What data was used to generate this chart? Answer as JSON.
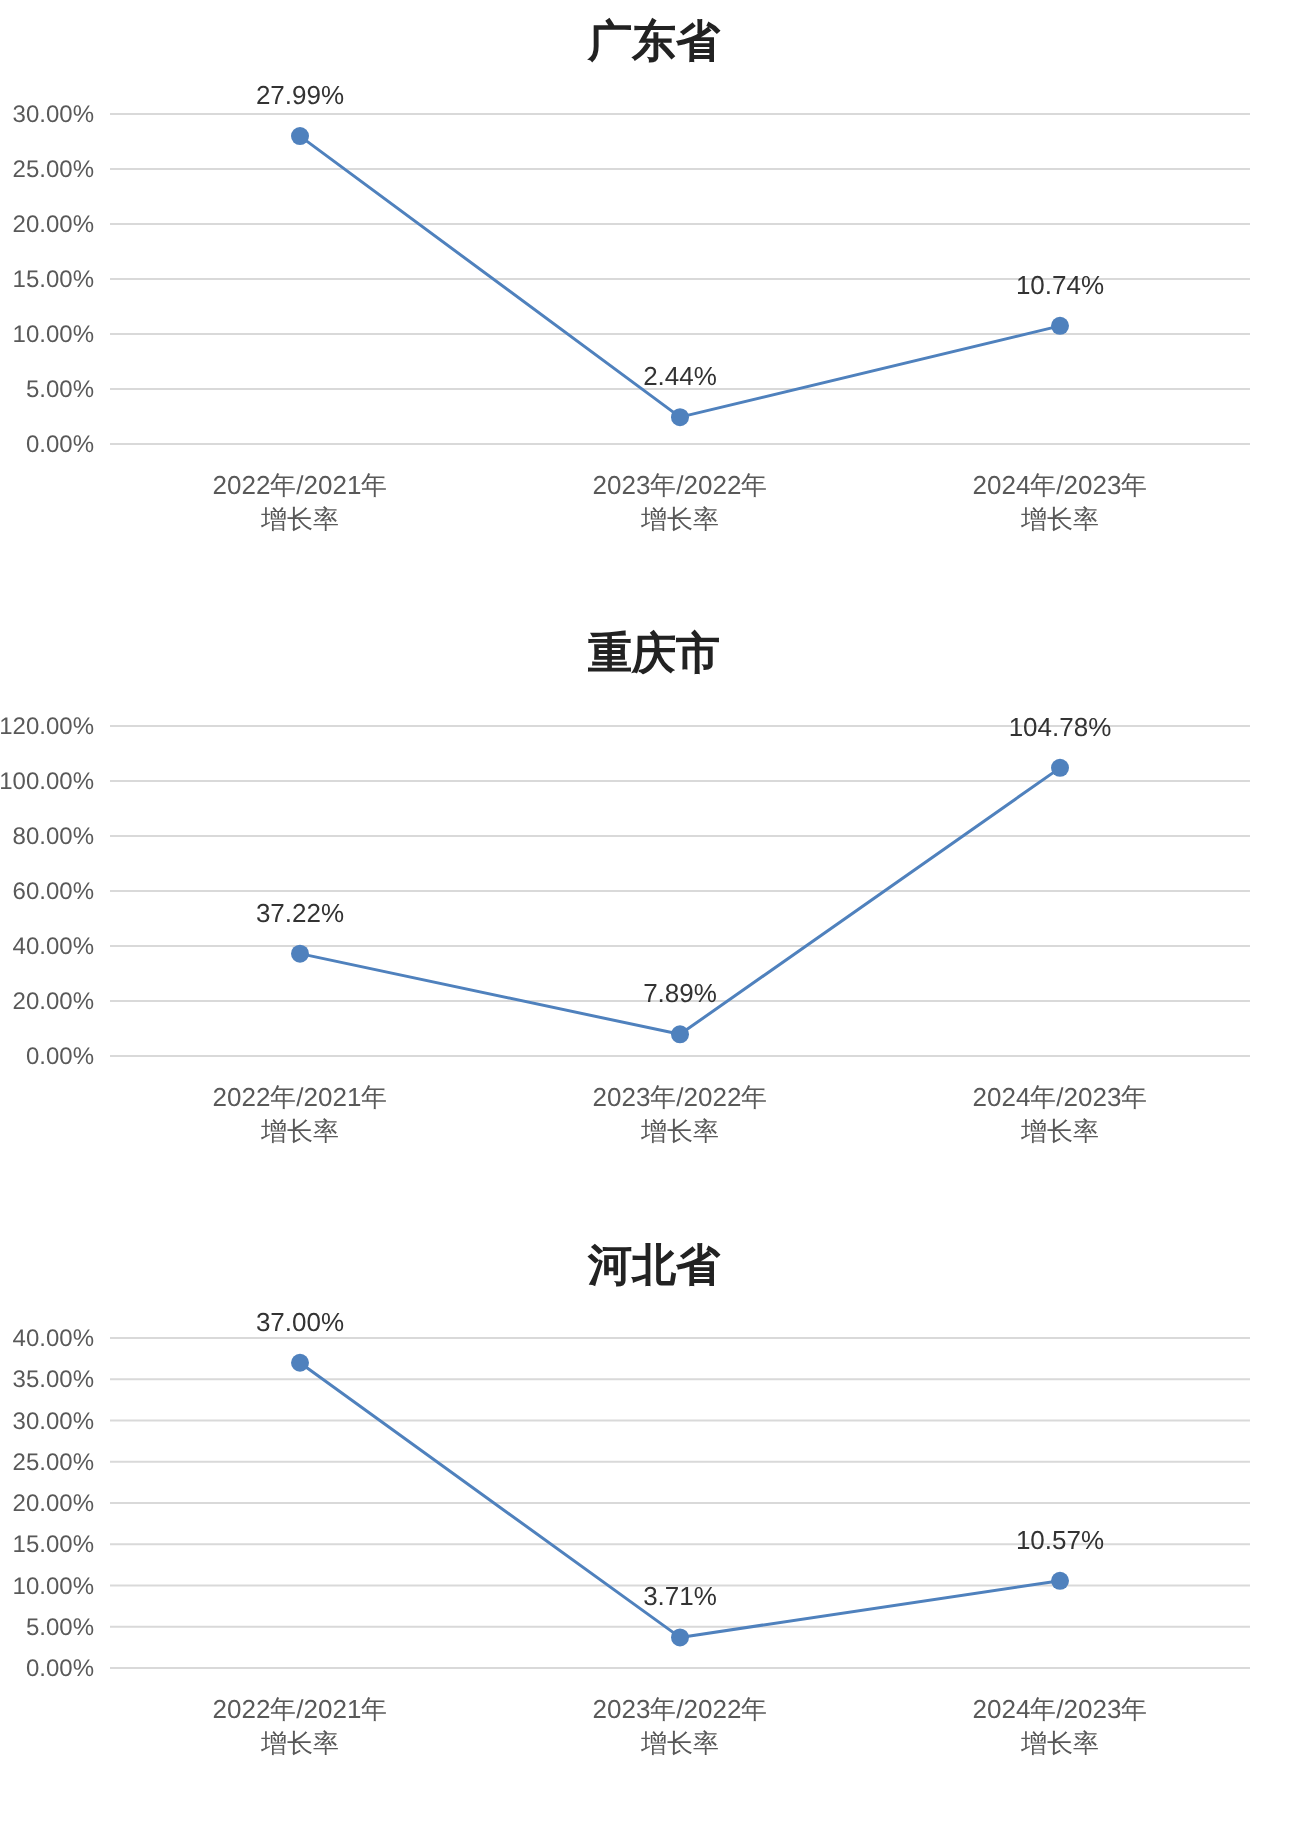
{
  "chart_data": [
    {
      "type": "line",
      "title": "广东省",
      "categories": [
        "2022年/2021年增长率",
        "2023年/2022年增长率",
        "2024年/2023年增长率"
      ],
      "series": [
        {
          "color": "#4f81bd",
          "values": [
            27.99,
            2.44,
            10.74
          ],
          "value_labels": [
            "27.99%",
            "2.44%",
            "10.74%"
          ]
        }
      ],
      "ylim": [
        0,
        30
      ],
      "yticks": [
        {
          "value": 0,
          "label": "0.00%"
        },
        {
          "value": 5,
          "label": "5.00%"
        },
        {
          "value": 10,
          "label": "10.00%"
        },
        {
          "value": 15,
          "label": "15.00%"
        },
        {
          "value": 20,
          "label": "20.00%"
        },
        {
          "value": 25,
          "label": "25.00%"
        },
        {
          "value": 30,
          "label": "30.00%"
        }
      ],
      "grid": "y",
      "marker": "circle",
      "line_style": "solid"
    },
    {
      "type": "line",
      "title": "重庆市",
      "categories": [
        "2022年/2021年增长率",
        "2023年/2022年增长率",
        "2024年/2023年增长率"
      ],
      "series": [
        {
          "color": "#4f81bd",
          "values": [
            37.22,
            7.89,
            104.78
          ],
          "value_labels": [
            "37.22%",
            "7.89%",
            "104.78%"
          ]
        }
      ],
      "ylim": [
        0,
        120
      ],
      "yticks": [
        {
          "value": 0,
          "label": "0.00%"
        },
        {
          "value": 20,
          "label": "20.00%"
        },
        {
          "value": 40,
          "label": "40.00%"
        },
        {
          "value": 60,
          "label": "60.00%"
        },
        {
          "value": 80,
          "label": "80.00%"
        },
        {
          "value": 100,
          "label": "100.00%"
        },
        {
          "value": 120,
          "label": "120.00%"
        }
      ],
      "grid": "y",
      "marker": "circle",
      "line_style": "solid"
    },
    {
      "type": "line",
      "title": "河北省",
      "categories": [
        "2022年/2021年增长率",
        "2023年/2022年增长率",
        "2024年/2023年增长率"
      ],
      "series": [
        {
          "color": "#4f81bd",
          "values": [
            37.0,
            3.71,
            10.57
          ],
          "value_labels": [
            "37.00%",
            "3.71%",
            "10.57%"
          ]
        }
      ],
      "ylim": [
        0,
        40
      ],
      "yticks": [
        {
          "value": 0,
          "label": "0.00%"
        },
        {
          "value": 5,
          "label": "5.00%"
        },
        {
          "value": 10,
          "label": "10.00%"
        },
        {
          "value": 15,
          "label": "15.00%"
        },
        {
          "value": 20,
          "label": "20.00%"
        },
        {
          "value": 25,
          "label": "25.00%"
        },
        {
          "value": 30,
          "label": "30.00%"
        },
        {
          "value": 35,
          "label": "35.00%"
        },
        {
          "value": 40,
          "label": "40.00%"
        }
      ],
      "grid": "y",
      "marker": "circle",
      "line_style": "solid"
    }
  ]
}
